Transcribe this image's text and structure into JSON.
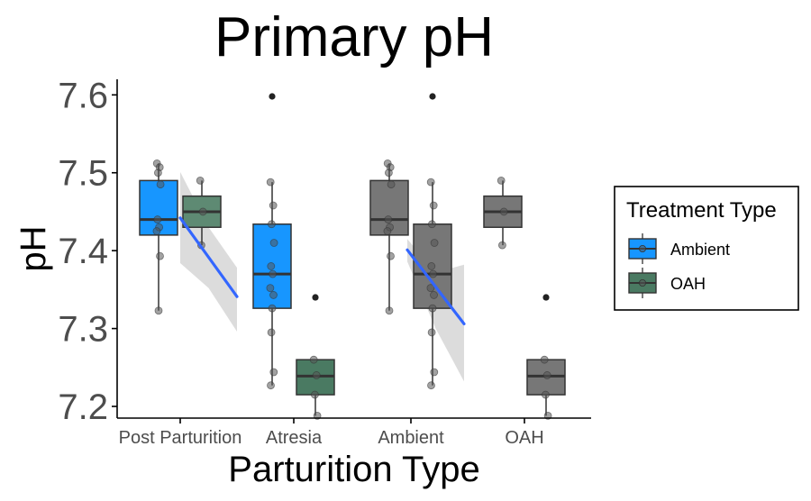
{
  "chart_data": {
    "type": "box",
    "title": "Primary pH",
    "xlabel": "Parturition Type",
    "ylabel": "pH",
    "categories": [
      "Post Parturition",
      "Atresia",
      "Ambient",
      "OAH"
    ],
    "ylim": [
      7.185,
      7.62
    ],
    "yticks": [
      7.2,
      7.3,
      7.4,
      7.5,
      7.6
    ],
    "ytick_labels": [
      "7.2",
      "7.3",
      "7.4",
      "7.5",
      "7.6"
    ],
    "grid": false,
    "legend": {
      "title": "Treatment Type",
      "position": "right",
      "entries": [
        {
          "label": "Ambient",
          "color": "#1796ff"
        },
        {
          "label": "OAH",
          "color": "#4a7a62"
        }
      ]
    },
    "boxes": [
      {
        "category": "Post Parturition",
        "treatment": "Ambient",
        "side": "left",
        "fill": "#1796ff",
        "whisker_low": 7.323,
        "q1": 7.42,
        "median": 7.44,
        "q3": 7.49,
        "whisker_high": 7.512,
        "outliers": [],
        "points": [
          7.512,
          7.507,
          7.5,
          7.485,
          7.44,
          7.43,
          7.425,
          7.393,
          7.323
        ]
      },
      {
        "category": "Post Parturition",
        "treatment": "OAH",
        "side": "right",
        "fill": "#5e8a73",
        "whisker_low": 7.407,
        "q1": 7.43,
        "median": 7.45,
        "q3": 7.47,
        "whisker_high": 7.49,
        "outliers": [],
        "points": [
          7.49,
          7.45,
          7.407
        ]
      },
      {
        "category": "Atresia",
        "treatment": "Ambient",
        "side": "left",
        "fill": "#1796ff",
        "whisker_low": 7.227,
        "q1": 7.326,
        "median": 7.37,
        "q3": 7.434,
        "whisker_high": 7.488,
        "outliers": [
          7.598
        ],
        "points": [
          7.488,
          7.458,
          7.434,
          7.41,
          7.38,
          7.37,
          7.352,
          7.343,
          7.326,
          7.295,
          7.244,
          7.227
        ]
      },
      {
        "category": "Atresia",
        "treatment": "OAH",
        "side": "right",
        "fill": "#4a7a62",
        "whisker_low": 7.188,
        "q1": 7.215,
        "median": 7.239,
        "q3": 7.26,
        "whisker_high": 7.26,
        "outliers": [
          7.34
        ],
        "points": [
          7.26,
          7.24,
          7.215,
          7.188
        ]
      },
      {
        "category": "Ambient",
        "treatment": "Ambient",
        "side": "left",
        "fill": "#777777",
        "whisker_low": 7.323,
        "q1": 7.42,
        "median": 7.44,
        "q3": 7.49,
        "whisker_high": 7.512,
        "outliers": [],
        "points": [
          7.512,
          7.507,
          7.5,
          7.485,
          7.44,
          7.43,
          7.425,
          7.393,
          7.323
        ]
      },
      {
        "category": "Ambient",
        "treatment": "OAH",
        "side": "right",
        "fill": "#777777",
        "whisker_low": 7.227,
        "q1": 7.326,
        "median": 7.37,
        "q3": 7.434,
        "whisker_high": 7.488,
        "outliers": [
          7.598
        ],
        "points": [
          7.488,
          7.458,
          7.434,
          7.41,
          7.38,
          7.37,
          7.352,
          7.343,
          7.326,
          7.295,
          7.244,
          7.227
        ]
      },
      {
        "category": "OAH",
        "treatment": "Ambient",
        "side": "left",
        "fill": "#777777",
        "whisker_low": 7.407,
        "q1": 7.43,
        "median": 7.45,
        "q3": 7.47,
        "whisker_high": 7.49,
        "outliers": [],
        "points": [
          7.49,
          7.45,
          7.407
        ]
      },
      {
        "category": "OAH",
        "treatment": "OAH",
        "side": "right",
        "fill": "#777777",
        "whisker_low": 7.188,
        "q1": 7.215,
        "median": 7.239,
        "q3": 7.26,
        "whisker_high": 7.26,
        "outliers": [
          7.34
        ],
        "points": [
          7.26,
          7.24,
          7.215,
          7.188
        ]
      }
    ],
    "trend_lines": [
      {
        "color": "#3366ff",
        "x_from": 1.0,
        "y_from": 7.442,
        "x_to": 1.5,
        "y_to": 7.341,
        "band_color": "#d3d3d3",
        "band_upper": [
          [
            1.0,
            7.501
          ],
          [
            1.25,
            7.43
          ],
          [
            1.5,
            7.378
          ]
        ],
        "band_lower": [
          [
            1.0,
            7.384
          ],
          [
            1.25,
            7.352
          ],
          [
            1.5,
            7.296
          ]
        ]
      },
      {
        "color": "#3366ff",
        "x_from": 3.0,
        "y_from": 7.401,
        "x_to": 3.5,
        "y_to": 7.306,
        "band_color": "#d3d3d3",
        "band_upper": [
          [
            3.0,
            7.415
          ],
          [
            3.25,
            7.372
          ],
          [
            3.5,
            7.382
          ]
        ],
        "band_lower": [
          [
            3.0,
            7.386
          ],
          [
            3.25,
            7.3
          ],
          [
            3.5,
            7.232
          ]
        ]
      }
    ]
  }
}
